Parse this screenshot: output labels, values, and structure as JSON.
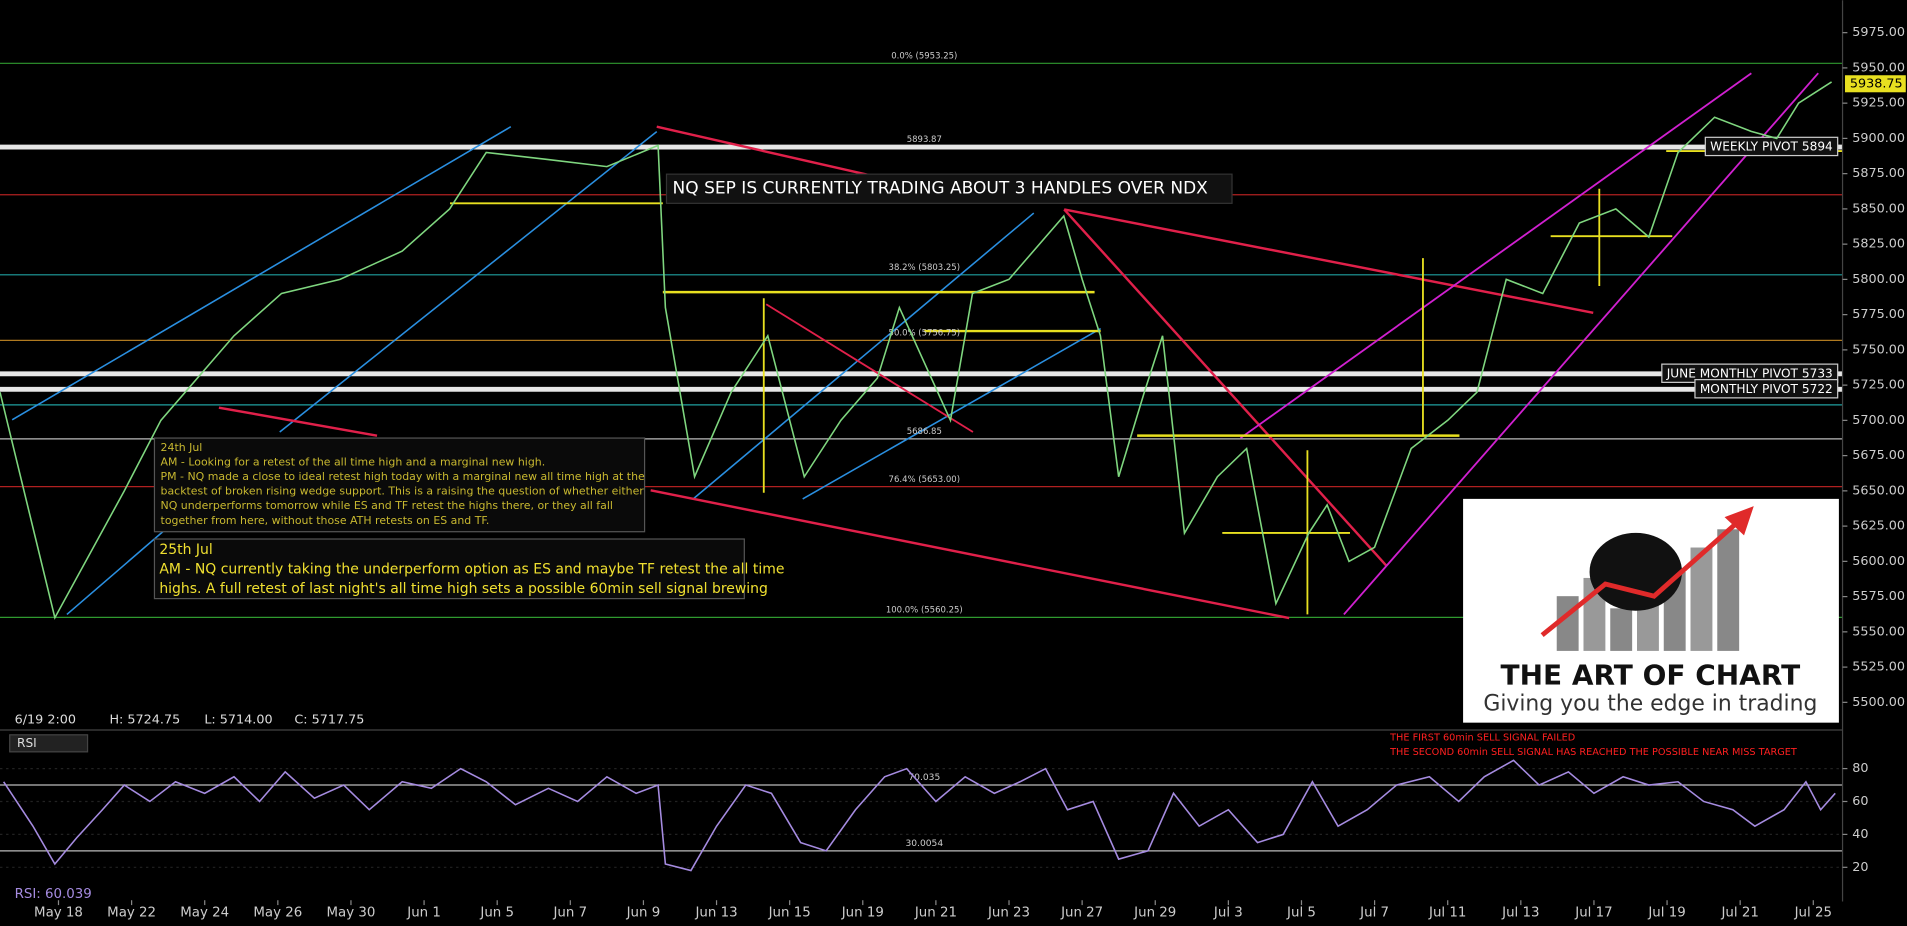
{
  "chart_data": [
    {
      "type": "line",
      "color": "#7fd67f",
      "x": [
        -0.6,
        0.9,
        2.8,
        3.8,
        5.8,
        7.1,
        8.7,
        10.4,
        11.7,
        12.7,
        14.4,
        16.0,
        17.4,
        17.6,
        18.4,
        19.4,
        20.4,
        21.4,
        22.4,
        23.4,
        24.0,
        25.4,
        26.0,
        27.0,
        28.5,
        29.0,
        29.5,
        30.0,
        30.7,
        31.2,
        31.8,
        32.7,
        33.5,
        34.3,
        35.2,
        35.7,
        36.3,
        37.0,
        38.0,
        39.0,
        39.8,
        40.6,
        41.6,
        42.6,
        43.6,
        44.5,
        45.3,
        46.3,
        47.3,
        48.0,
        48.6,
        49.5
      ],
      "values": [
        5720,
        5560,
        5650,
        5700,
        5760,
        5790,
        5800,
        5820,
        5850,
        5890,
        5885,
        5880,
        5895,
        5780,
        5660,
        5720,
        5760,
        5660,
        5700,
        5730,
        5780,
        5700,
        5790,
        5800,
        5845,
        5800,
        5760,
        5660,
        5720,
        5760,
        5620,
        5660,
        5680,
        5570,
        5620,
        5640,
        5600,
        5610,
        5680,
        5700,
        5720,
        5800,
        5790,
        5840,
        5850,
        5830,
        5890,
        5915,
        5905,
        5900,
        5925,
        5940
      ],
      "xlim": [
        -0.6,
        49.8
      ],
      "ylim": [
        5483,
        5998
      ],
      "yticks": [
        {
          "value": 5500,
          "label": "5500.00"
        },
        {
          "value": 5525,
          "label": "5525.00"
        },
        {
          "value": 5550,
          "label": "5550.00"
        },
        {
          "value": 5575,
          "label": "5575.00"
        },
        {
          "value": 5600,
          "label": "5600.00"
        },
        {
          "value": 5625,
          "label": "5625.00"
        },
        {
          "value": 5650,
          "label": "5650.00"
        },
        {
          "value": 5675,
          "label": "5675.00"
        },
        {
          "value": 5700,
          "label": "5700.00"
        },
        {
          "value": 5725,
          "label": "5725.00"
        },
        {
          "value": 5750,
          "label": "5750.00"
        },
        {
          "value": 5775,
          "label": "5775.00"
        },
        {
          "value": 5800,
          "label": "5800.00"
        },
        {
          "value": 5825,
          "label": "5825.00"
        },
        {
          "value": 5850,
          "label": "5850.00"
        },
        {
          "value": 5875,
          "label": "5875.00"
        },
        {
          "value": 5900,
          "label": "5900.00"
        },
        {
          "value": 5925,
          "label": "5925.00"
        },
        {
          "value": 5950,
          "label": "5950.00"
        },
        {
          "value": 5975,
          "label": "5975.00"
        }
      ],
      "last_price": 5938.75,
      "levels": [
        {
          "value": 5953.25,
          "color": "#2f9a2f",
          "width": 1,
          "label": "0.0% (5953.25)"
        },
        {
          "value": 5893.87,
          "color": "#e6e6e6",
          "width": 4,
          "label": "5893.87",
          "tag": "WEEKLY PIVOT 5894"
        },
        {
          "value": 5860,
          "color": "#b02020",
          "width": 1
        },
        {
          "value": 5803.25,
          "color": "#1fa0a0",
          "width": 1,
          "label": "38.2% (5803.25)"
        },
        {
          "value": 5756.75,
          "color": "#b07a20",
          "width": 1,
          "label": "50.0% (5756.75)"
        },
        {
          "value": 5733,
          "color": "#e6e6e6",
          "width": 4,
          "tag": "JUNE MONTHLY PIVOT 5733"
        },
        {
          "value": 5722,
          "color": "#e6e6e6",
          "width": 4,
          "tag": "MONTHLY PIVOT 5722"
        },
        {
          "value": 5711,
          "color": "#1fa0a0",
          "width": 1
        },
        {
          "value": 5686.85,
          "color": "#bbbbbb",
          "width": 1,
          "label": "5686.85"
        },
        {
          "value": 5653,
          "color": "#b02020",
          "width": 1,
          "label": "76.4% (5653.00)"
        },
        {
          "value": 5560.25,
          "color": "#2f9a2f",
          "width": 1,
          "label": "100.0% (5560.25)"
        }
      ],
      "headline": "NQ SEP IS CURRENTLY TRADING ABOUT 3 HANDLES OVER NDX",
      "note1": [
        "24th Jul",
        "AM -  Looking for a retest of the all time high and a marginal new high.",
        "PM - NQ made a close to ideal retest high today with a marginal new all time high at the",
        "backtest of broken rising wedge support. This is a raising the question of whether either",
        "NQ underperforms tomorrow while ES and TF retest the highs there, or they all fall",
        "together from here, without those ATH retests on ES and TF."
      ],
      "note2": [
        "25th Jul",
        "AM - NQ currently taking the underperform option as ES and maybe TF retest the all time",
        "highs. A full retest of last night's all time high sets a possible 60min sell signal brewing"
      ],
      "ohlc": [
        "6/19 2:00",
        "H: 5724.75",
        "L: 5714.00",
        "C: 5717.75"
      ],
      "logo": {
        "title": "THE ART OF CHART",
        "tagline": "Giving you the edge in trading"
      }
    },
    {
      "type": "line",
      "color": "#a58be0",
      "panel_label": "RSI",
      "readout": "RSI: 60.039",
      "x": [
        -0.5,
        0.3,
        0.9,
        1.5,
        2.2,
        2.8,
        3.5,
        4.2,
        5,
        5.8,
        6.5,
        7.2,
        8,
        8.8,
        9.5,
        10.4,
        11.2,
        12,
        12.7,
        13.5,
        14.4,
        15.2,
        16,
        16.8,
        17.4,
        17.6,
        18.3,
        19,
        19.8,
        20.5,
        21.3,
        22,
        22.8,
        23.6,
        24.2,
        25,
        25.8,
        26.6,
        27.3,
        28,
        28.6,
        29.3,
        30,
        30.8,
        31.5,
        32.2,
        33,
        33.8,
        34.5,
        35.3,
        36,
        36.8,
        37.6,
        38.5,
        39.3,
        40,
        40.8,
        41.5,
        42.3,
        43,
        43.8,
        44.5,
        45.3,
        46,
        46.8,
        47.4,
        48.2,
        48.8,
        49.2,
        49.6
      ],
      "values": [
        72,
        45,
        22,
        38,
        55,
        70,
        60,
        72,
        65,
        75,
        60,
        78,
        62,
        70,
        55,
        72,
        68,
        80,
        72,
        58,
        68,
        60,
        75,
        65,
        70,
        22,
        18,
        45,
        70,
        65,
        35,
        30,
        55,
        75,
        80,
        60,
        75,
        65,
        72,
        80,
        55,
        60,
        25,
        30,
        65,
        45,
        55,
        35,
        40,
        72,
        45,
        55,
        70,
        75,
        60,
        75,
        85,
        70,
        78,
        65,
        75,
        70,
        72,
        60,
        55,
        45,
        55,
        72,
        55,
        65
      ],
      "xlim": [
        -0.6,
        49.8
      ],
      "ylim": [
        0,
        102
      ],
      "yticks": [
        20,
        40,
        60,
        80
      ],
      "levels": [
        70.035,
        30.0054
      ],
      "xticks": [
        {
          "value": 1,
          "label": "May 18"
        },
        {
          "value": 3,
          "label": "May 22"
        },
        {
          "value": 5,
          "label": "May 24"
        },
        {
          "value": 7,
          "label": "May 26"
        },
        {
          "value": 9,
          "label": "May 30"
        },
        {
          "value": 11,
          "label": "Jun 1"
        },
        {
          "value": 13,
          "label": "Jun 5"
        },
        {
          "value": 15,
          "label": "Jun 7"
        },
        {
          "value": 17,
          "label": "Jun 9"
        },
        {
          "value": 19,
          "label": "Jun 13"
        },
        {
          "value": 21,
          "label": "Jun 15"
        },
        {
          "value": 23,
          "label": "Jun 19"
        },
        {
          "value": 25,
          "label": "Jun 21"
        },
        {
          "value": 27,
          "label": "Jun 23"
        },
        {
          "value": 29,
          "label": "Jun 27"
        },
        {
          "value": 31,
          "label": "Jun 29"
        },
        {
          "value": 33,
          "label": "Jul 3"
        },
        {
          "value": 35,
          "label": "Jul 5"
        },
        {
          "value": 37,
          "label": "Jul 7"
        },
        {
          "value": 39,
          "label": "Jul 11"
        },
        {
          "value": 41,
          "label": "Jul 13"
        },
        {
          "value": 43,
          "label": "Jul 17"
        },
        {
          "value": 45,
          "label": "Jul 19"
        },
        {
          "value": 47,
          "label": "Jul 21"
        },
        {
          "value": 49,
          "label": "Jul 25"
        }
      ],
      "signal_notes": [
        "THE FIRST 60min SELL SIGNAL FAILED",
        "THE SECOND 60min SELL SIGNAL HAS REACHED THE POSSIBLE NEAR MISS TARGET"
      ]
    }
  ]
}
